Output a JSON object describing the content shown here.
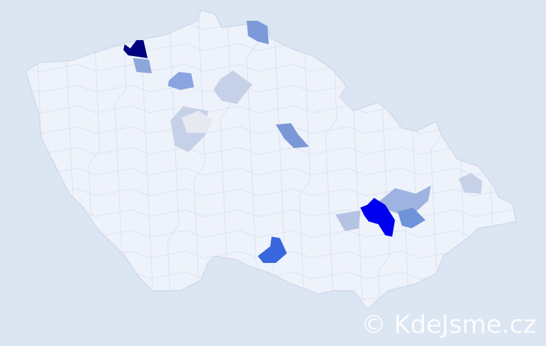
{
  "map": {
    "country_fill": "#eef2fa",
    "border_color": "#d0d9ea",
    "background": "#dce5f2",
    "highlight_colors": {
      "darkest": "#000080",
      "strong": "#0000ee",
      "medium": "#3a66dd",
      "mid": "#6f93d8",
      "light": "#9fb3e0",
      "pale": "#c6d1e8",
      "palest": "#e6e9f0"
    }
  },
  "watermark": {
    "text": "© KdeJsme.cz"
  }
}
